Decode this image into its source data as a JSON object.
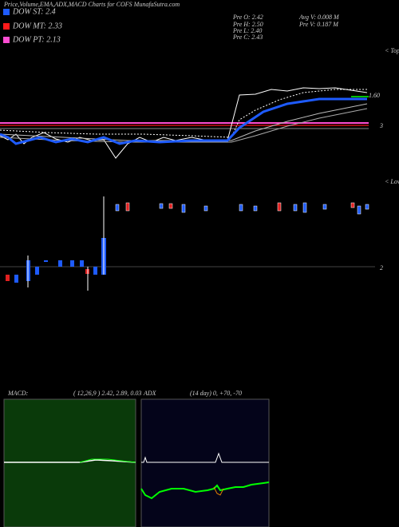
{
  "header": {
    "title": "Price,Volume,EMA,ADX,MACD Charts for COFS MunafaSutra.com"
  },
  "legend": [
    {
      "label": "DOW ST: 2.4",
      "color": "#1e5bff"
    },
    {
      "label": "DOW MT: 2.33",
      "color": "#ff1a1a"
    },
    {
      "label": "DOW PT: 2.13",
      "color": "#ff4dd2"
    }
  ],
  "stats": {
    "left": [
      "Pre  O: 2.42",
      "Pre  H: 2.50",
      "Pre  L: 2.40",
      "Pre  C: 2.43"
    ],
    "right": [
      "Avg V: 0.008 M",
      "Pre  V: 0.187 M"
    ]
  },
  "price_panel": {
    "line_label": "1.60",
    "right_label": "3",
    "tops_label": "< Tops"
  },
  "volume_panel": {
    "lows_label": "< Lows",
    "right_label": "2"
  },
  "macd": {
    "name": "MACD:",
    "params": "( 12,26,9 ) 2.42, 2.89, 0.03"
  },
  "adx": {
    "name": "ADX",
    "params": "(14  day) 0, +70, -70"
  }
}
